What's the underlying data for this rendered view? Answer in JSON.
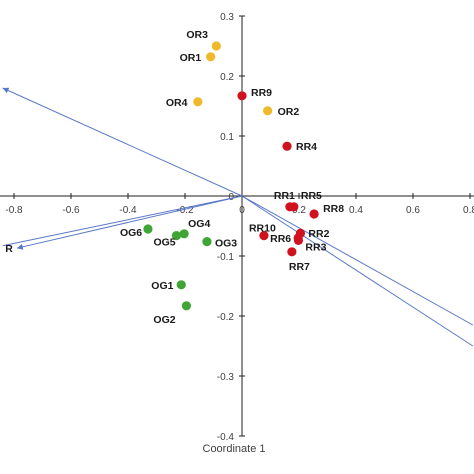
{
  "chart_data": {
    "type": "scatter",
    "title": "",
    "xlabel": "Coordinate 1",
    "ylabel": "",
    "xlim": [
      -0.84,
      0.81
    ],
    "ylim": [
      -0.4,
      0.3
    ],
    "grid": false,
    "x_ticks": [
      "-0.8",
      "-0.6",
      "-0.4",
      "-0.2",
      "0",
      "0.2",
      "0.4",
      "0.6",
      "0.8"
    ],
    "y_ticks": [
      "-0.4",
      "-0.3",
      "-0.2",
      "-0.1",
      "0",
      "0.1",
      "0.2",
      "0.3"
    ],
    "colors": {
      "OR": "#f0b92b",
      "RR": "#d0121f",
      "OG": "#3fa535",
      "vector": "#5a78c8",
      "axis": "#222222"
    },
    "groups": [
      {
        "key": "OR",
        "points": [
          {
            "label": "OR3",
            "x": -0.09,
            "y": 0.25
          },
          {
            "label": "OR1",
            "x": -0.11,
            "y": 0.232
          },
          {
            "label": "OR4",
            "x": -0.155,
            "y": 0.157
          },
          {
            "label": "OR2",
            "x": 0.09,
            "y": 0.142
          }
        ]
      },
      {
        "key": "RR",
        "points": [
          {
            "label": "RR9",
            "x": 0.0,
            "y": 0.167
          },
          {
            "label": "RR4",
            "x": 0.158,
            "y": 0.083
          },
          {
            "label": "RR1",
            "x": 0.168,
            "y": -0.018
          },
          {
            "label": "RR5",
            "x": 0.182,
            "y": -0.018
          },
          {
            "label": "RR8",
            "x": 0.253,
            "y": -0.03
          },
          {
            "label": "RR2",
            "x": 0.205,
            "y": -0.062
          },
          {
            "label": "RR10",
            "x": 0.077,
            "y": -0.066
          },
          {
            "label": "RR6",
            "x": 0.197,
            "y": -0.07
          },
          {
            "label": "RR3",
            "x": 0.198,
            "y": -0.074
          },
          {
            "label": "RR7",
            "x": 0.175,
            "y": -0.093
          }
        ]
      },
      {
        "key": "OG",
        "points": [
          {
            "label": "OG6",
            "x": -0.33,
            "y": -0.055
          },
          {
            "label": "OG4",
            "x": -0.203,
            "y": -0.063
          },
          {
            "label": "OG5",
            "x": -0.23,
            "y": -0.066
          },
          {
            "label": "OG3",
            "x": -0.123,
            "y": -0.076
          },
          {
            "label": "OG1",
            "x": -0.213,
            "y": -0.148
          },
          {
            "label": "OG2",
            "x": -0.195,
            "y": -0.183
          }
        ]
      }
    ],
    "vectors": [
      {
        "label": "",
        "x": -0.84,
        "y": 0.18
      },
      {
        "label": "R",
        "x": -0.79,
        "y": -0.087
      },
      {
        "label": "",
        "x": -0.84,
        "y": -0.083
      },
      {
        "label": "",
        "x": 0.81,
        "y": -0.215
      },
      {
        "label": "",
        "x": 0.81,
        "y": -0.25
      }
    ]
  }
}
